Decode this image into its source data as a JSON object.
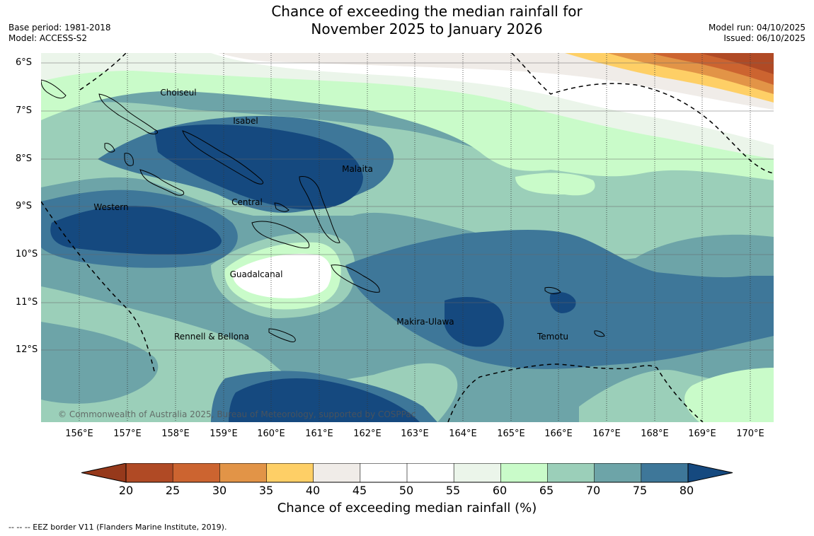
{
  "title_line1": "Chance of exceeding the median rainfall for",
  "title_line2": "November 2025 to January 2026",
  "base_period": "Base period: 1981-2018",
  "model": "Model: ACCESS-S2",
  "model_run": "Model run: 04/10/2025",
  "issued": "Issued: 06/10/2025",
  "copyright": "© Commonwealth of Australia 2025, Bureau of Meteorology, supported by COSPPac",
  "lat_labels": [
    "6°S",
    "7°S",
    "8°S",
    "9°S",
    "10°S",
    "11°S",
    "12°S"
  ],
  "lon_labels": [
    "156°E",
    "157°E",
    "158°E",
    "159°E",
    "160°E",
    "161°E",
    "162°E",
    "163°E",
    "164°E",
    "165°E",
    "166°E",
    "167°E",
    "168°E",
    "169°E",
    "170°E"
  ],
  "regions": {
    "choiseul": "Choiseul",
    "isabel": "Isabel",
    "malaita": "Malaita",
    "western": "Western",
    "central": "Central",
    "guadalcanal": "Guadalcanal",
    "makira": "Makira-Ulawa",
    "rennell": "Rennell & Bellona",
    "temotu": "Temotu"
  },
  "colorbar": {
    "ticks": [
      "20",
      "25",
      "30",
      "35",
      "40",
      "45",
      "50",
      "55",
      "60",
      "65",
      "70",
      "75",
      "80"
    ],
    "colors": [
      "#b04a25",
      "#cc6430",
      "#e29447",
      "#fecf66",
      "#f0ece8",
      "#ffffff",
      "#ffffff",
      "#ebf5ea",
      "#c9fbc9",
      "#9bcfb9",
      "#6da4a8",
      "#3e7799",
      "#15497f"
    ],
    "under_color": "#96391b",
    "over_color": "#15497f",
    "label": "Chance of exceeding median rainfall (%)"
  },
  "footer": "--  --  -- EEZ border V11 (Flanders Marine Institute, 2019)."
}
